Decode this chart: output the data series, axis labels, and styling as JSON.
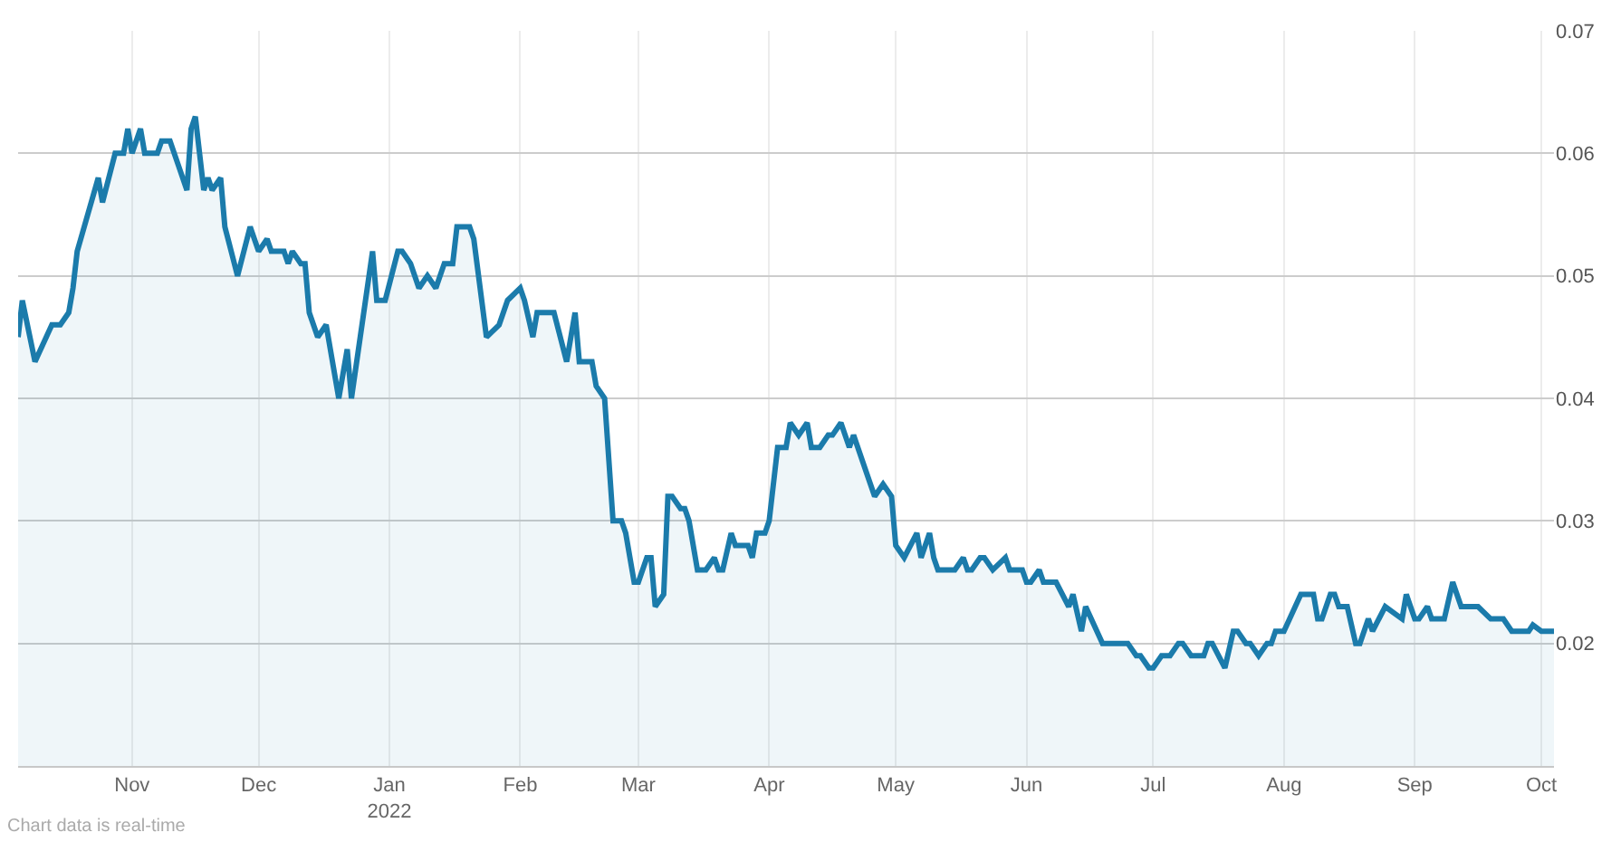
{
  "chart_data": {
    "type": "area",
    "x": [
      "2021-10-05",
      "2021-10-06",
      "2021-10-09",
      "2021-10-13",
      "2021-10-15",
      "2021-10-17",
      "2021-10-18",
      "2021-10-19",
      "2021-10-24",
      "2021-10-25",
      "2021-10-28",
      "2021-10-30",
      "2021-10-31",
      "2021-11-01",
      "2021-11-03",
      "2021-11-04",
      "2021-11-07",
      "2021-11-08",
      "2021-11-10",
      "2021-11-12",
      "2021-11-14",
      "2021-11-15",
      "2021-11-16",
      "2021-11-18",
      "2021-11-19",
      "2021-11-20",
      "2021-11-22",
      "2021-11-23",
      "2021-11-26",
      "2021-11-29",
      "2021-12-01",
      "2021-12-03",
      "2021-12-04",
      "2021-12-07",
      "2021-12-08",
      "2021-12-09",
      "2021-12-11",
      "2021-12-12",
      "2021-12-13",
      "2021-12-15",
      "2021-12-17",
      "2021-12-20",
      "2021-12-22",
      "2021-12-23",
      "2021-12-28",
      "2021-12-29",
      "2021-12-31",
      "2022-01-03",
      "2022-01-04",
      "2022-01-06",
      "2022-01-08",
      "2022-01-10",
      "2022-01-12",
      "2022-01-14",
      "2022-01-16",
      "2022-01-17",
      "2022-01-20",
      "2022-01-21",
      "2022-01-24",
      "2022-01-27",
      "2022-01-29",
      "2022-02-01",
      "2022-02-02",
      "2022-02-04",
      "2022-02-05",
      "2022-02-09",
      "2022-02-12",
      "2022-02-14",
      "2022-02-15",
      "2022-02-18",
      "2022-02-19",
      "2022-02-21",
      "2022-02-23",
      "2022-02-25",
      "2022-02-26",
      "2022-02-28",
      "2022-03-01",
      "2022-03-03",
      "2022-03-04",
      "2022-03-05",
      "2022-03-07",
      "2022-03-08",
      "2022-03-09",
      "2022-03-11",
      "2022-03-12",
      "2022-03-13",
      "2022-03-15",
      "2022-03-17",
      "2022-03-19",
      "2022-03-20",
      "2022-03-21",
      "2022-03-23",
      "2022-03-24",
      "2022-03-27",
      "2022-03-28",
      "2022-03-29",
      "2022-03-31",
      "2022-04-01",
      "2022-04-03",
      "2022-04-05",
      "2022-04-06",
      "2022-04-08",
      "2022-04-10",
      "2022-04-11",
      "2022-04-13",
      "2022-04-15",
      "2022-04-16",
      "2022-04-18",
      "2022-04-20",
      "2022-04-21",
      "2022-04-25",
      "2022-04-26",
      "2022-04-28",
      "2022-04-30",
      "2022-05-01",
      "2022-05-03",
      "2022-05-06",
      "2022-05-07",
      "2022-05-09",
      "2022-05-10",
      "2022-05-11",
      "2022-05-15",
      "2022-05-17",
      "2022-05-18",
      "2022-05-19",
      "2022-05-21",
      "2022-05-22",
      "2022-05-24",
      "2022-05-27",
      "2022-05-28",
      "2022-05-31",
      "2022-06-01",
      "2022-06-02",
      "2022-06-04",
      "2022-06-05",
      "2022-06-08",
      "2022-06-11",
      "2022-06-12",
      "2022-06-14",
      "2022-06-15",
      "2022-06-19",
      "2022-06-25",
      "2022-06-27",
      "2022-06-28",
      "2022-06-30",
      "2022-07-01",
      "2022-07-03",
      "2022-07-05",
      "2022-07-07",
      "2022-07-08",
      "2022-07-10",
      "2022-07-13",
      "2022-07-14",
      "2022-07-15",
      "2022-07-18",
      "2022-07-20",
      "2022-07-21",
      "2022-07-23",
      "2022-07-24",
      "2022-07-26",
      "2022-07-28",
      "2022-07-29",
      "2022-07-30",
      "2022-08-01",
      "2022-08-05",
      "2022-08-08",
      "2022-08-09",
      "2022-08-10",
      "2022-08-12",
      "2022-08-13",
      "2022-08-14",
      "2022-08-16",
      "2022-08-18",
      "2022-08-19",
      "2022-08-21",
      "2022-08-22",
      "2022-08-25",
      "2022-08-29",
      "2022-08-30",
      "2022-09-01",
      "2022-09-02",
      "2022-09-04",
      "2022-09-05",
      "2022-09-08",
      "2022-09-10",
      "2022-09-12",
      "2022-09-16",
      "2022-09-19",
      "2022-09-22",
      "2022-09-24",
      "2022-09-28",
      "2022-09-29",
      "2022-10-01",
      "2022-10-04"
    ],
    "series": [
      {
        "color": "#1b7bab",
        "values": [
          0.045,
          0.048,
          0.043,
          0.046,
          0.046,
          0.047,
          0.049,
          0.052,
          0.058,
          0.056,
          0.06,
          0.06,
          0.062,
          0.06,
          0.062,
          0.06,
          0.06,
          0.061,
          0.061,
          0.059,
          0.057,
          0.062,
          0.063,
          0.057,
          0.058,
          0.057,
          0.058,
          0.054,
          0.05,
          0.054,
          0.052,
          0.053,
          0.052,
          0.052,
          0.051,
          0.052,
          0.051,
          0.051,
          0.047,
          0.045,
          0.046,
          0.04,
          0.044,
          0.04,
          0.052,
          0.048,
          0.048,
          0.052,
          0.052,
          0.051,
          0.049,
          0.05,
          0.049,
          0.051,
          0.051,
          0.054,
          0.054,
          0.053,
          0.045,
          0.046,
          0.048,
          0.049,
          0.048,
          0.045,
          0.047,
          0.047,
          0.043,
          0.047,
          0.043,
          0.043,
          0.041,
          0.04,
          0.03,
          0.03,
          0.029,
          0.025,
          0.025,
          0.027,
          0.027,
          0.023,
          0.024,
          0.032,
          0.032,
          0.031,
          0.031,
          0.03,
          0.026,
          0.026,
          0.027,
          0.026,
          0.026,
          0.029,
          0.028,
          0.028,
          0.027,
          0.029,
          0.029,
          0.03,
          0.036,
          0.036,
          0.038,
          0.037,
          0.038,
          0.036,
          0.036,
          0.037,
          0.037,
          0.038,
          0.036,
          0.037,
          0.033,
          0.032,
          0.033,
          0.032,
          0.028,
          0.027,
          0.029,
          0.027,
          0.029,
          0.027,
          0.026,
          0.026,
          0.027,
          0.026,
          0.026,
          0.027,
          0.027,
          0.026,
          0.027,
          0.026,
          0.026,
          0.025,
          0.025,
          0.026,
          0.025,
          0.025,
          0.023,
          0.024,
          0.021,
          0.023,
          0.02,
          0.02,
          0.019,
          0.019,
          0.018,
          0.018,
          0.019,
          0.019,
          0.02,
          0.02,
          0.019,
          0.019,
          0.02,
          0.02,
          0.018,
          0.021,
          0.021,
          0.02,
          0.02,
          0.019,
          0.02,
          0.02,
          0.021,
          0.021,
          0.024,
          0.024,
          0.022,
          0.022,
          0.024,
          0.024,
          0.023,
          0.023,
          0.02,
          0.02,
          0.022,
          0.021,
          0.023,
          0.022,
          0.024,
          0.022,
          0.022,
          0.023,
          0.022,
          0.022,
          0.025,
          0.023,
          0.023,
          0.022,
          0.022,
          0.021,
          0.021,
          0.0215,
          0.021,
          0.021
        ]
      }
    ],
    "xlim": [
      "2021-10-05",
      "2022-10-04"
    ],
    "xticks": [
      {
        "value": "2021-11-01",
        "label": "Nov"
      },
      {
        "value": "2021-12-01",
        "label": "Dec"
      },
      {
        "value": "2022-01-01",
        "label": "Jan\n2022"
      },
      {
        "value": "2022-02-01",
        "label": "Feb"
      },
      {
        "value": "2022-03-01",
        "label": "Mar"
      },
      {
        "value": "2022-04-01",
        "label": "Apr"
      },
      {
        "value": "2022-05-01",
        "label": "May"
      },
      {
        "value": "2022-06-01",
        "label": "Jun"
      },
      {
        "value": "2022-07-01",
        "label": "Jul"
      },
      {
        "value": "2022-08-01",
        "label": "Aug"
      },
      {
        "value": "2022-09-01",
        "label": "Sep"
      },
      {
        "value": "2022-10-01",
        "label": "Oct"
      }
    ],
    "ylim": [
      0.01,
      0.07
    ],
    "yticks": [
      0.02,
      0.03,
      0.04,
      0.05,
      0.06,
      0.07
    ],
    "grid": true,
    "annotations": [
      "Chart data is real-time"
    ]
  }
}
